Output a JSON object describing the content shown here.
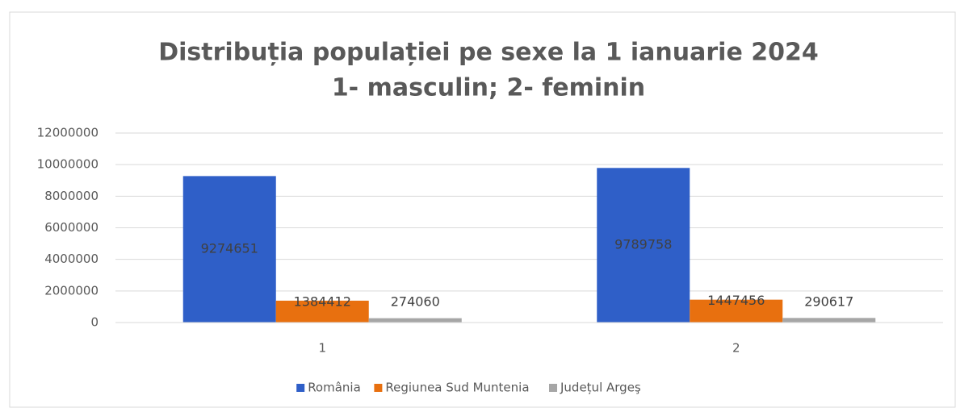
{
  "chart_data": {
    "type": "bar",
    "title": [
      "Distribuția populației pe sexe la 1 ianuarie 2024",
      "1- masculin; 2- feminin"
    ],
    "categories": [
      "1",
      "2"
    ],
    "series": [
      {
        "name": "România",
        "color": "#2f5fc8",
        "values": [
          9274651,
          9789758
        ]
      },
      {
        "name": "Regiunea Sud Muntenia",
        "color": "#e8700f",
        "values": [
          1384412,
          1447456
        ]
      },
      {
        "name": "Județul Argeş",
        "color": "#a6a6a6",
        "values": [
          274060,
          290617
        ]
      }
    ],
    "ylim": [
      0,
      12000000
    ],
    "yticks": [
      0,
      2000000,
      4000000,
      6000000,
      8000000,
      10000000,
      12000000
    ],
    "grid": true,
    "legend": "bottom"
  }
}
